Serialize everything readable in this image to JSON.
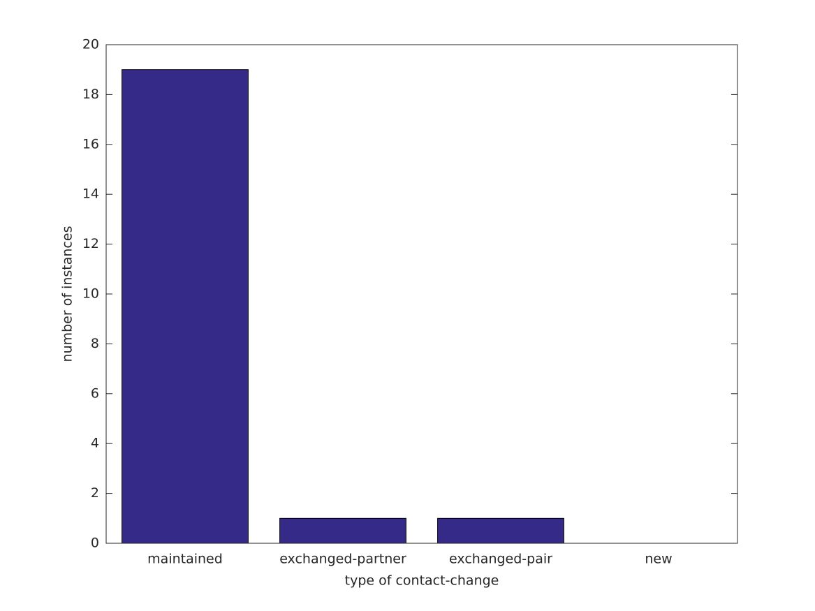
{
  "chart_data": {
    "type": "bar",
    "categories": [
      "maintained",
      "exchanged-partner",
      "exchanged-pair",
      "new"
    ],
    "values": [
      19,
      1,
      1,
      0
    ],
    "color": "#352a87",
    "xlabel": "type of contact-change",
    "ylabel": "number of instances",
    "ylim": [
      0,
      20
    ],
    "yticks": [
      0,
      2,
      4,
      6,
      8,
      10,
      12,
      14,
      16,
      18,
      20
    ],
    "grid": false
  }
}
